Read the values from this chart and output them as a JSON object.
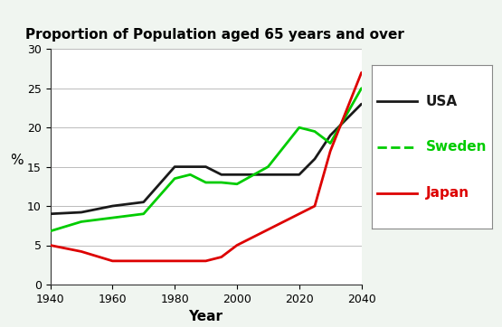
{
  "title": "Proportion of Population aged 65 years and over",
  "xlabel": "Year",
  "ylabel": "%",
  "years": [
    1940,
    1950,
    1960,
    1970,
    1980,
    1985,
    1990,
    1995,
    2000,
    2010,
    2020,
    2025,
    2030,
    2040
  ],
  "usa": [
    9,
    9.2,
    10,
    10.5,
    15,
    15,
    15,
    14,
    14,
    14,
    14,
    16,
    19,
    23
  ],
  "sweden": [
    6.8,
    8,
    8.5,
    9,
    13.5,
    14,
    13,
    13,
    12.8,
    15,
    20,
    19.5,
    18,
    25
  ],
  "japan": [
    5,
    4.2,
    3,
    3,
    3,
    3,
    3,
    3.5,
    5,
    7,
    9,
    10,
    17,
    27
  ],
  "usa_color": "#1a1a1a",
  "sweden_color": "#00cc00",
  "japan_color": "#dd0000",
  "ylim": [
    0,
    30
  ],
  "xlim": [
    1940,
    2040
  ],
  "xticks": [
    1940,
    1960,
    1980,
    2000,
    2020,
    2040
  ],
  "yticks": [
    0,
    5,
    10,
    15,
    20,
    25,
    30
  ],
  "outer_background": "#f0f5f0",
  "plot_background": "#ffffff",
  "title_fontsize": 11,
  "axis_label_fontsize": 11,
  "tick_fontsize": 9,
  "legend_labels": [
    "USA",
    "Sweden",
    "Japan"
  ],
  "legend_label_colors": [
    "#1a1a1a",
    "#00cc00",
    "#dd0000"
  ],
  "linewidth": 2.0
}
